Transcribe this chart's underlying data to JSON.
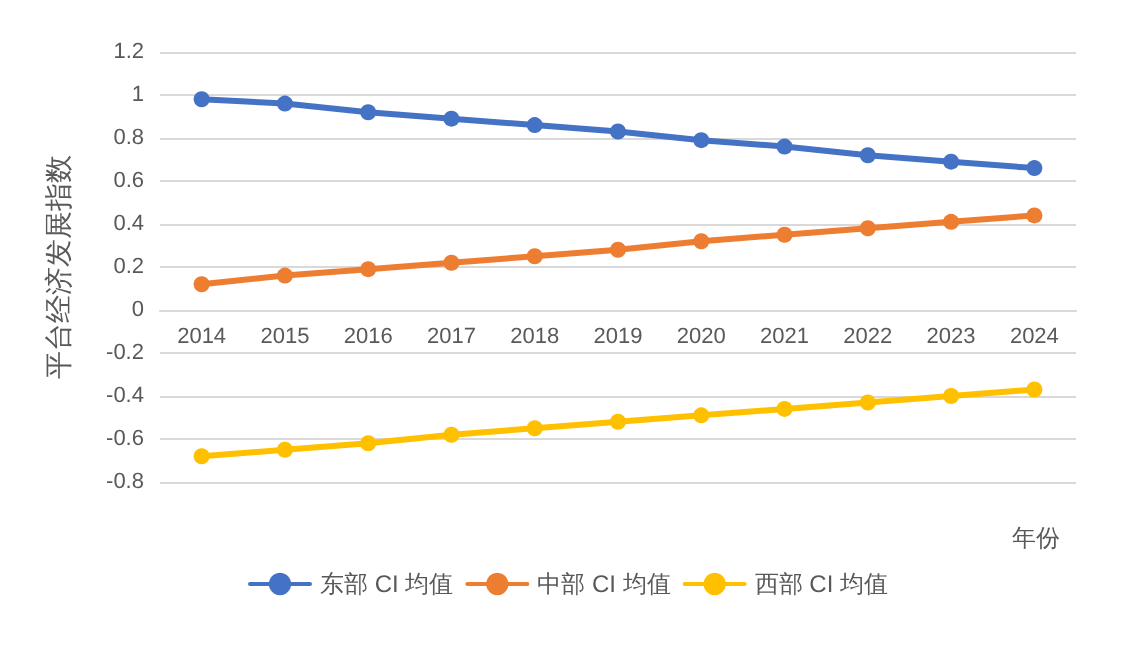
{
  "chart_data": {
    "type": "line",
    "ylabel": "平台经济发展指数",
    "xlabel": "年份",
    "categories": [
      "2014",
      "2015",
      "2016",
      "2017",
      "2018",
      "2019",
      "2020",
      "2021",
      "2022",
      "2023",
      "2024"
    ],
    "series": [
      {
        "name": "东部 CI 均值",
        "color": "#4472c4",
        "values": [
          0.98,
          0.96,
          0.92,
          0.89,
          0.86,
          0.83,
          0.79,
          0.76,
          0.72,
          0.69,
          0.66
        ]
      },
      {
        "name": "中部 CI 均值",
        "color": "#ed7d31",
        "values": [
          0.12,
          0.16,
          0.19,
          0.22,
          0.25,
          0.28,
          0.32,
          0.35,
          0.38,
          0.41,
          0.44
        ]
      },
      {
        "name": "西部 CI 均值",
        "color": "#ffc000",
        "values": [
          -0.68,
          -0.65,
          -0.62,
          -0.58,
          -0.55,
          -0.52,
          -0.49,
          -0.46,
          -0.43,
          -0.4,
          -0.37
        ]
      }
    ],
    "ylim": [
      -0.8,
      1.2
    ],
    "yticks": [
      -0.8,
      -0.6,
      -0.4,
      -0.2,
      0,
      0.2,
      0.4,
      0.6,
      0.8,
      1,
      1.2
    ],
    "grid": "y",
    "legend": "bottom",
    "marker": "circle",
    "line_style": "solid"
  }
}
